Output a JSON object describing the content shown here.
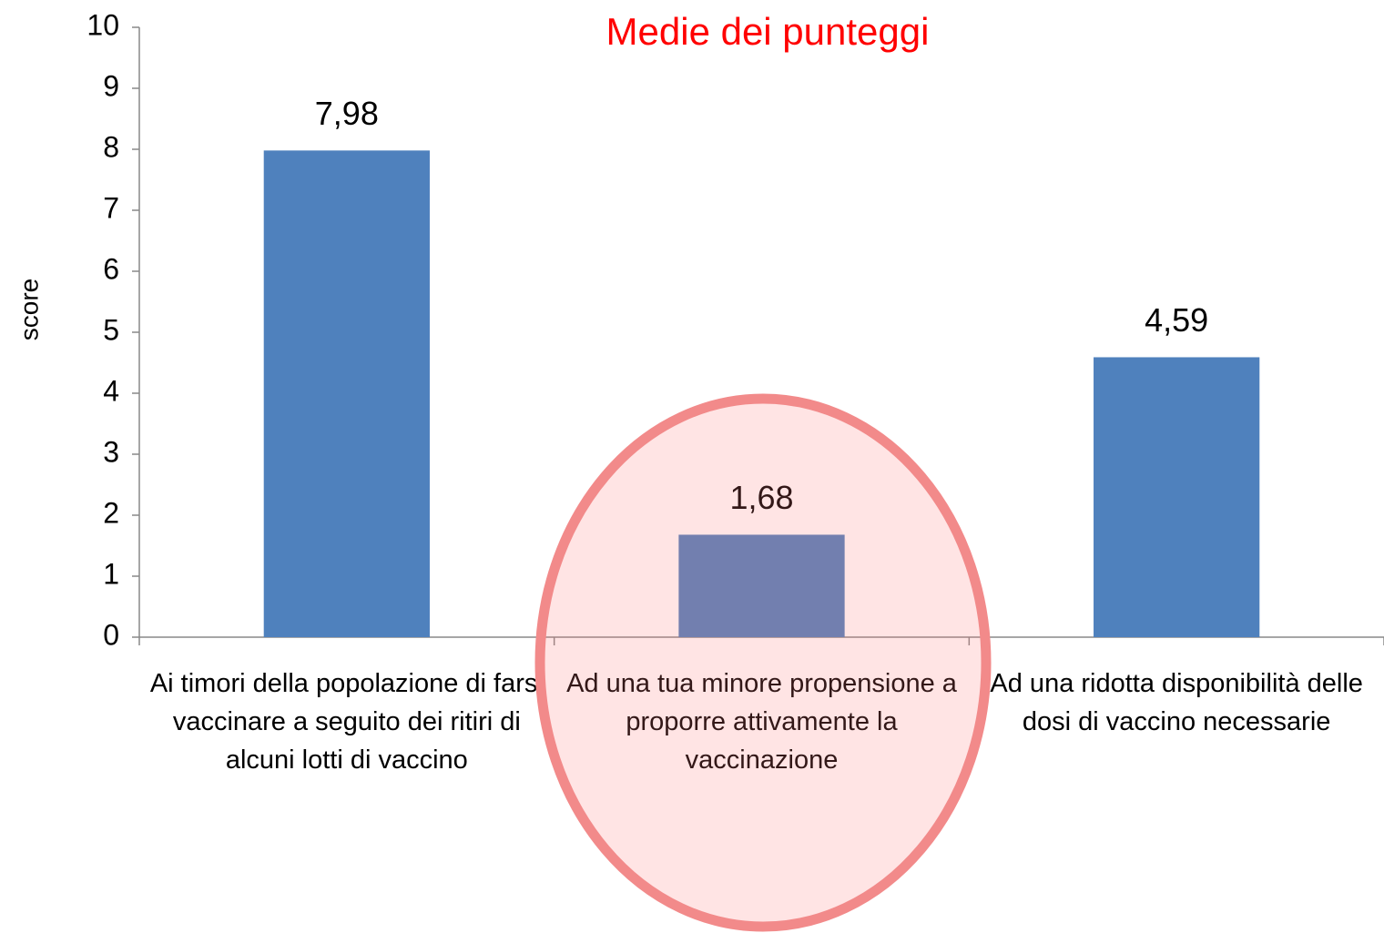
{
  "chart_data": {
    "type": "bar",
    "title": "Medie dei punteggi",
    "y_label": "score",
    "categories": [
      "Ai timori della popolazione di farsi vaccinare a seguito dei ritiri di alcuni lotti di vaccino",
      "Ad una tua minore propensione a proporre attivamente la vaccinazione",
      "Ad una ridotta disponibilità delle dosi di vaccino necessarie"
    ],
    "values": [
      7.98,
      1.68,
      4.59
    ],
    "value_labels": [
      "7,98",
      "1,68",
      "4,59"
    ],
    "color": "#4f81bd",
    "ylim": [
      0,
      10
    ],
    "yticks": [
      0,
      1,
      2,
      3,
      4,
      5,
      6,
      7,
      8,
      9,
      10
    ],
    "grid": false
  }
}
